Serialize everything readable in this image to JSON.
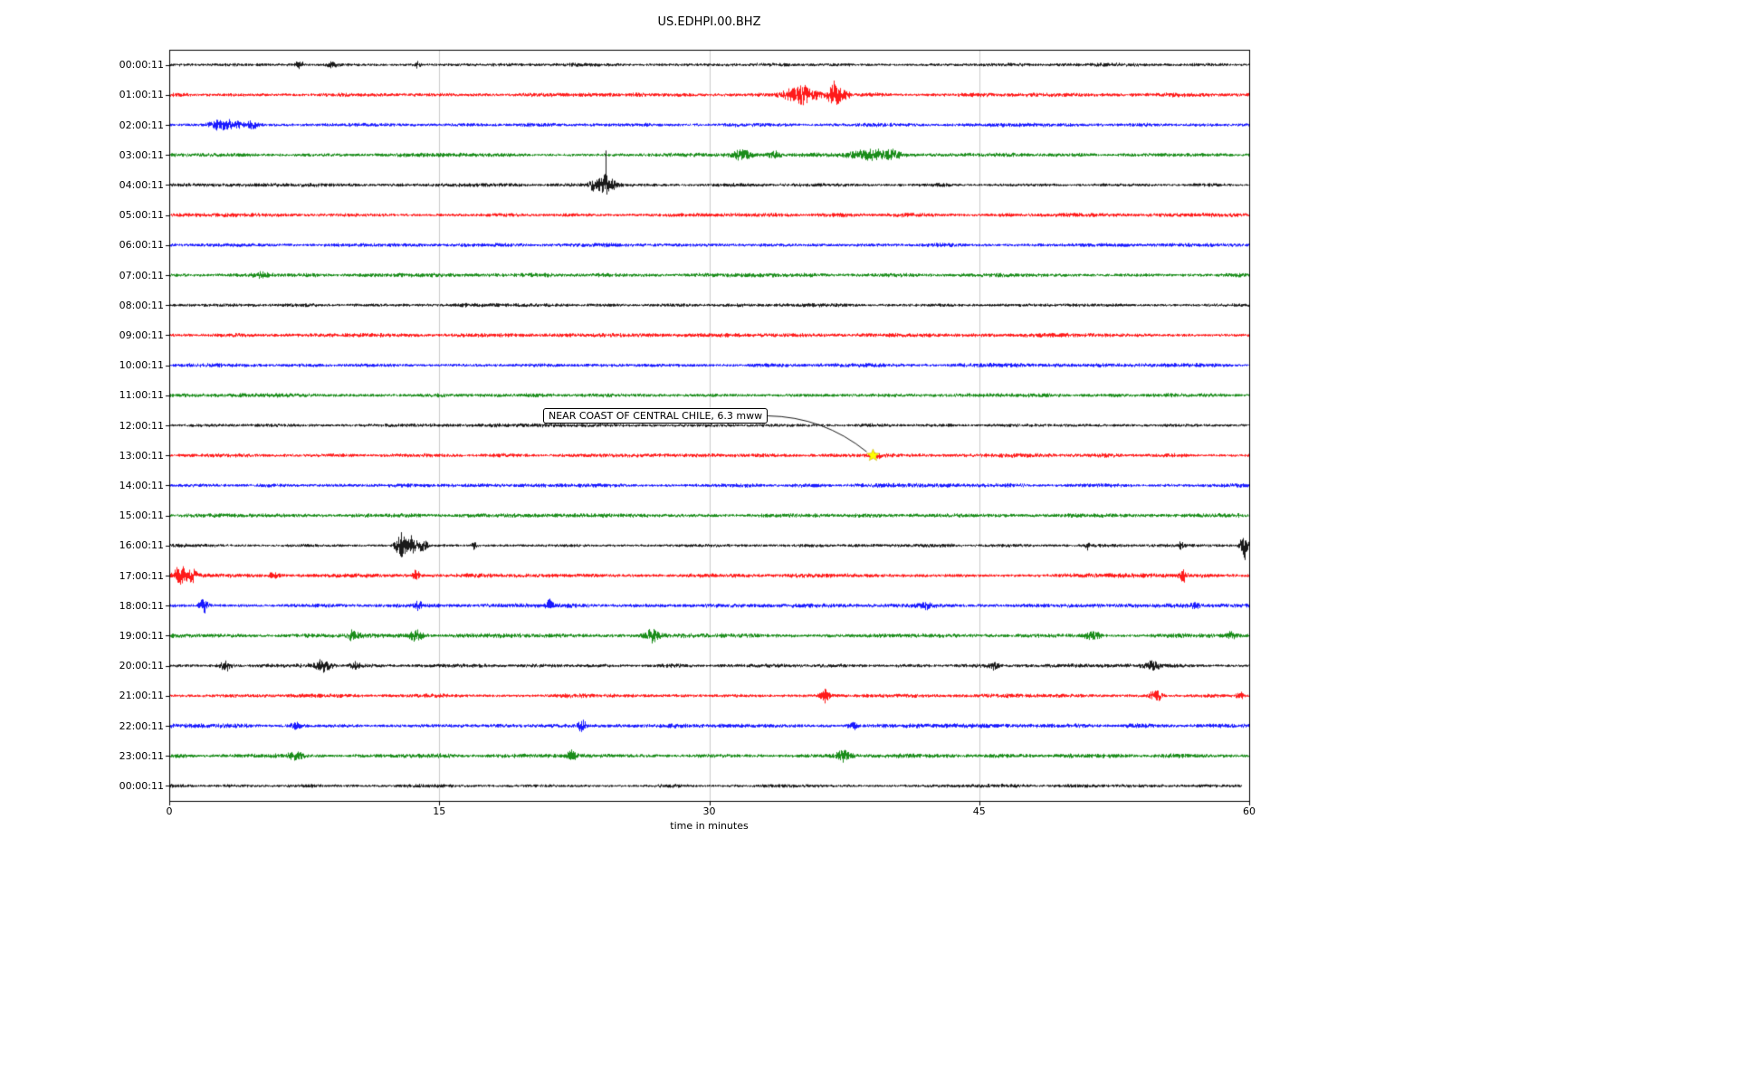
{
  "title": "US.EDHPI.00.BHZ",
  "xlabel": "time in minutes",
  "annotation": {
    "text": "NEAR COAST OF CENTRAL CHILE, 6.3 mww",
    "row": 13,
    "t_minutes": 39.1
  },
  "colors": {
    "background": "#ffffff",
    "axis": "#000000",
    "grid": "#cccccc",
    "event_marker": "#ffff00",
    "event_marker_edge": "#c8b400",
    "trace_cycle": [
      "#000000",
      "#ff0000",
      "#0000ff",
      "#008000"
    ]
  },
  "chart_data": {
    "type": "line",
    "subtype": "seismogram-dayplot",
    "xlim": [
      0,
      60
    ],
    "x_ticks": [
      0,
      15,
      30,
      45,
      60
    ],
    "minutes_per_row": 60,
    "rows": [
      {
        "label": "00:00:11",
        "color": "#000000",
        "base_amp": 2.0,
        "spikes": [
          {
            "t": 7.2,
            "a": 5,
            "w": 0.15
          },
          {
            "t": 9.0,
            "a": 3,
            "w": 0.2
          },
          {
            "t": 13.8,
            "a": 4,
            "w": 0.1
          }
        ]
      },
      {
        "label": "01:00:11",
        "color": "#ff0000",
        "base_amp": 2.2,
        "spikes": [
          {
            "t": 34.6,
            "a": 6,
            "w": 0.4
          },
          {
            "t": 35.2,
            "a": 12,
            "w": 0.25
          },
          {
            "t": 36.0,
            "a": 5,
            "w": 0.3
          },
          {
            "t": 36.9,
            "a": 15,
            "w": 0.2
          },
          {
            "t": 37.4,
            "a": 6,
            "w": 0.25
          }
        ]
      },
      {
        "label": "02:00:11",
        "color": "#0000ff",
        "base_amp": 2.2,
        "spikes": [
          {
            "t": 2.6,
            "a": 3,
            "w": 0.3
          },
          {
            "t": 3.3,
            "a": 5,
            "w": 0.5
          },
          {
            "t": 4.6,
            "a": 4,
            "w": 0.3
          }
        ]
      },
      {
        "label": "03:00:11",
        "color": "#008000",
        "base_amp": 2.2,
        "spikes": [
          {
            "t": 31.8,
            "a": 7,
            "w": 0.3
          },
          {
            "t": 33.6,
            "a": 4,
            "w": 0.25
          },
          {
            "t": 38.9,
            "a": 6,
            "w": 0.7
          },
          {
            "t": 40.1,
            "a": 4,
            "w": 0.4
          }
        ]
      },
      {
        "label": "04:00:11",
        "color": "#000000",
        "base_amp": 2.0,
        "spikes": [
          {
            "t": 23.6,
            "a": 7,
            "w": 0.2
          },
          {
            "t": 24.0,
            "a": 10,
            "w": 0.12
          },
          {
            "t": 24.25,
            "a": 45,
            "w": 0.06
          },
          {
            "t": 24.6,
            "a": 6,
            "w": 0.2
          }
        ]
      },
      {
        "label": "05:00:11",
        "color": "#ff0000",
        "base_amp": 2.2,
        "spikes": []
      },
      {
        "label": "06:00:11",
        "color": "#0000ff",
        "base_amp": 2.2,
        "spikes": []
      },
      {
        "label": "07:00:11",
        "color": "#008000",
        "base_amp": 2.2,
        "spikes": [
          {
            "t": 5.0,
            "a": 3,
            "w": 0.3
          }
        ]
      },
      {
        "label": "08:00:11",
        "color": "#000000",
        "base_amp": 2.0,
        "spikes": []
      },
      {
        "label": "09:00:11",
        "color": "#ff0000",
        "base_amp": 2.2,
        "spikes": []
      },
      {
        "label": "10:00:11",
        "color": "#0000ff",
        "base_amp": 2.2,
        "spikes": []
      },
      {
        "label": "11:00:11",
        "color": "#008000",
        "base_amp": 2.2,
        "spikes": []
      },
      {
        "label": "12:00:11",
        "color": "#000000",
        "base_amp": 2.0,
        "spikes": []
      },
      {
        "label": "13:00:11",
        "color": "#ff0000",
        "base_amp": 2.2,
        "spikes": [
          {
            "t": 39.2,
            "a": 3,
            "w": 0.25
          }
        ]
      },
      {
        "label": "14:00:11",
        "color": "#0000ff",
        "base_amp": 2.2,
        "spikes": []
      },
      {
        "label": "15:00:11",
        "color": "#008000",
        "base_amp": 2.2,
        "spikes": []
      },
      {
        "label": "16:00:11",
        "color": "#000000",
        "base_amp": 2.0,
        "spikes": [
          {
            "t": 12.9,
            "a": 20,
            "w": 0.22
          },
          {
            "t": 13.5,
            "a": 13,
            "w": 0.18
          },
          {
            "t": 14.1,
            "a": 9,
            "w": 0.15
          },
          {
            "t": 16.9,
            "a": 5,
            "w": 0.1
          },
          {
            "t": 51.0,
            "a": 4,
            "w": 0.1
          },
          {
            "t": 56.2,
            "a": 6,
            "w": 0.1
          },
          {
            "t": 59.7,
            "a": 16,
            "w": 0.15
          }
        ]
      },
      {
        "label": "17:00:11",
        "color": "#ff0000",
        "base_amp": 2.3,
        "spikes": [
          {
            "t": 0.6,
            "a": 9,
            "w": 0.3
          },
          {
            "t": 1.3,
            "a": 6,
            "w": 0.2
          },
          {
            "t": 5.8,
            "a": 4,
            "w": 0.2
          },
          {
            "t": 13.7,
            "a": 6,
            "w": 0.12
          },
          {
            "t": 56.3,
            "a": 8,
            "w": 0.12
          }
        ]
      },
      {
        "label": "18:00:11",
        "color": "#0000ff",
        "base_amp": 2.3,
        "spikes": [
          {
            "t": 1.9,
            "a": 8,
            "w": 0.2
          },
          {
            "t": 13.8,
            "a": 6,
            "w": 0.15
          },
          {
            "t": 21.1,
            "a": 7,
            "w": 0.12
          },
          {
            "t": 42.0,
            "a": 3,
            "w": 0.2
          },
          {
            "t": 57.0,
            "a": 4,
            "w": 0.15
          }
        ]
      },
      {
        "label": "19:00:11",
        "color": "#008000",
        "base_amp": 2.4,
        "spikes": [
          {
            "t": 10.2,
            "a": 5,
            "w": 0.2
          },
          {
            "t": 13.7,
            "a": 6,
            "w": 0.25
          },
          {
            "t": 26.8,
            "a": 8,
            "w": 0.25
          },
          {
            "t": 51.3,
            "a": 5,
            "w": 0.3
          },
          {
            "t": 59.0,
            "a": 4,
            "w": 0.2
          }
        ]
      },
      {
        "label": "20:00:11",
        "color": "#000000",
        "base_amp": 2.1,
        "spikes": [
          {
            "t": 3.1,
            "a": 6,
            "w": 0.2
          },
          {
            "t": 8.5,
            "a": 7,
            "w": 0.35
          },
          {
            "t": 10.3,
            "a": 5,
            "w": 0.2
          },
          {
            "t": 45.8,
            "a": 4,
            "w": 0.2
          },
          {
            "t": 54.6,
            "a": 4,
            "w": 0.3
          }
        ]
      },
      {
        "label": "21:00:11",
        "color": "#ff0000",
        "base_amp": 2.3,
        "spikes": [
          {
            "t": 36.4,
            "a": 9,
            "w": 0.2
          },
          {
            "t": 54.8,
            "a": 6,
            "w": 0.25
          },
          {
            "t": 59.5,
            "a": 4,
            "w": 0.15
          }
        ]
      },
      {
        "label": "22:00:11",
        "color": "#0000ff",
        "base_amp": 2.3,
        "spikes": [
          {
            "t": 7.0,
            "a": 4,
            "w": 0.2
          },
          {
            "t": 22.9,
            "a": 7,
            "w": 0.15
          },
          {
            "t": 38.0,
            "a": 4,
            "w": 0.2
          }
        ]
      },
      {
        "label": "23:00:11",
        "color": "#008000",
        "base_amp": 2.4,
        "spikes": [
          {
            "t": 7.0,
            "a": 4,
            "w": 0.3
          },
          {
            "t": 22.3,
            "a": 6,
            "w": 0.2
          },
          {
            "t": 37.4,
            "a": 6,
            "w": 0.25
          }
        ]
      },
      {
        "label": "00:00:11",
        "color": "#000000",
        "base_amp": 2.0,
        "t_end": 59.6,
        "spikes": []
      }
    ]
  }
}
